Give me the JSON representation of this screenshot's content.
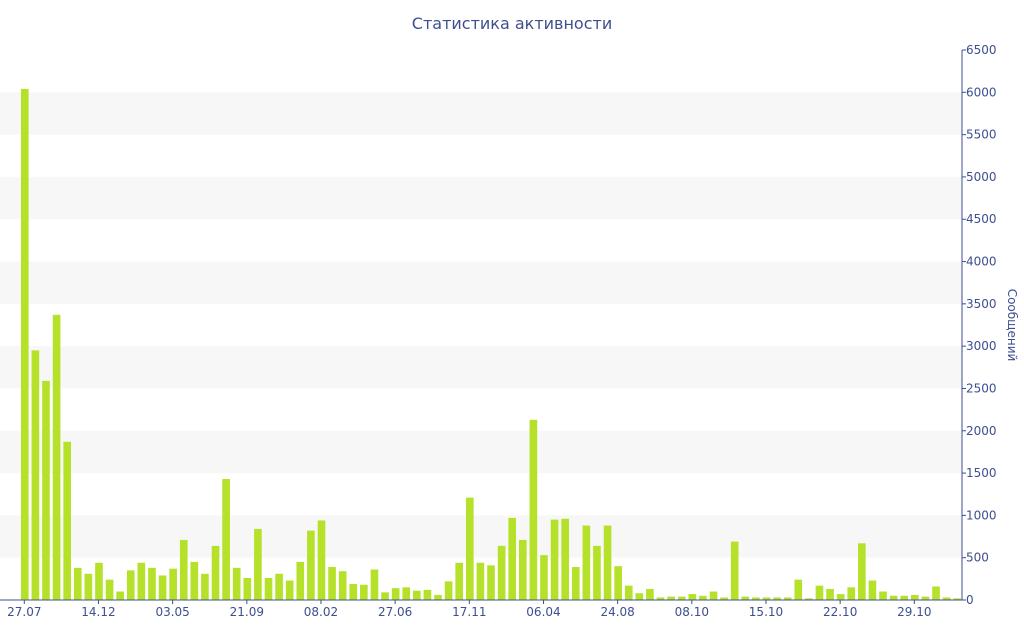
{
  "chart_data": {
    "type": "bar",
    "title": "Статистика активности",
    "ylabel": "Сообщений",
    "xlabel": "",
    "ylim": [
      0,
      6500
    ],
    "y_ticks": [
      0,
      500,
      1000,
      1500,
      2000,
      2500,
      3000,
      3500,
      4000,
      4500,
      5000,
      5500,
      6000,
      6500
    ],
    "y_axis_side": "right",
    "grid": "alternating horizontal bands",
    "x_tick_labels": [
      {
        "index": 0,
        "label": "27.07"
      },
      {
        "index": 7,
        "label": "14.12"
      },
      {
        "index": 14,
        "label": "03.05"
      },
      {
        "index": 21,
        "label": "21.09"
      },
      {
        "index": 28,
        "label": "08.02"
      },
      {
        "index": 35,
        "label": "27.06"
      },
      {
        "index": 42,
        "label": "17.11"
      },
      {
        "index": 49,
        "label": "06.04"
      },
      {
        "index": 56,
        "label": "24.08"
      },
      {
        "index": 63,
        "label": "08.10"
      },
      {
        "index": 70,
        "label": "15.10"
      },
      {
        "index": 77,
        "label": "22.10"
      },
      {
        "index": 84,
        "label": "29.10"
      }
    ],
    "values": [
      6040,
      2950,
      2590,
      3370,
      1870,
      380,
      310,
      440,
      240,
      100,
      350,
      440,
      380,
      290,
      370,
      710,
      450,
      310,
      640,
      1430,
      380,
      260,
      840,
      260,
      310,
      230,
      450,
      820,
      940,
      390,
      340,
      190,
      180,
      360,
      90,
      140,
      150,
      110,
      120,
      60,
      220,
      440,
      1210,
      440,
      410,
      640,
      970,
      710,
      2130,
      530,
      950,
      960,
      390,
      880,
      640,
      880,
      400,
      170,
      80,
      130,
      30,
      40,
      40,
      70,
      50,
      100,
      30,
      690,
      40,
      30,
      30,
      30,
      30,
      240,
      20,
      170,
      130,
      70,
      150,
      670,
      230,
      100,
      50,
      50,
      60,
      40,
      160,
      30,
      20
    ],
    "colors": {
      "bar": "#b5e12a",
      "band": "#f7f7f7",
      "axis": "#3d4f8f",
      "text": "#3d4f8f"
    }
  }
}
